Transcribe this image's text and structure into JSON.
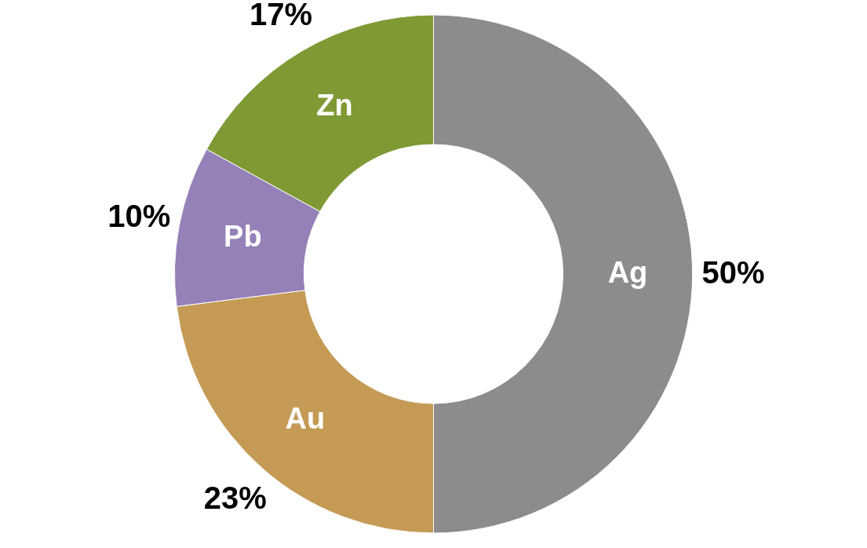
{
  "chart_data": {
    "type": "donut",
    "categories": [
      "Ag",
      "Au",
      "Pb",
      "Zn"
    ],
    "values": [
      50,
      23,
      10,
      17
    ],
    "value_labels": [
      "50%",
      "23%",
      "10%",
      "17%"
    ],
    "colors": [
      "#8c8c8c",
      "#c49a55",
      "#9580b8",
      "#7f9a34"
    ]
  }
}
